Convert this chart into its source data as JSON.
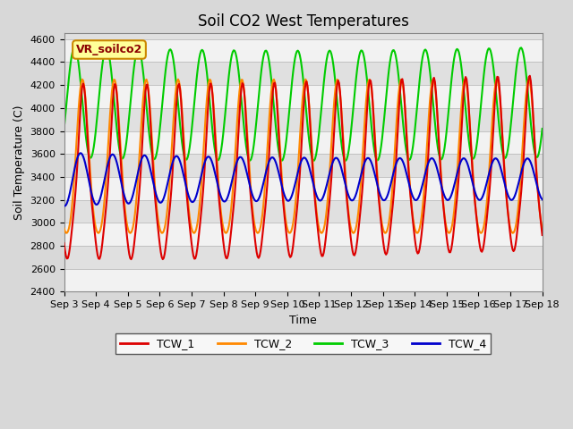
{
  "title": "Soil CO2 West Temperatures",
  "xlabel": "Time",
  "ylabel": "Soil Temperature (C)",
  "ylim": [
    2400,
    4650
  ],
  "xlim": [
    0,
    15
  ],
  "xtick_labels": [
    "Sep 3",
    "Sep 4",
    "Sep 5",
    "Sep 6",
    "Sep 7",
    "Sep 8",
    "Sep 9",
    "Sep 10",
    "Sep 11",
    "Sep 12",
    "Sep 13",
    "Sep 14",
    "Sep 15",
    "Sep 16",
    "Sep 17",
    "Sep 18"
  ],
  "series_labels": [
    "TCW_1",
    "TCW_2",
    "TCW_3",
    "TCW_4"
  ],
  "series_colors": [
    "#dd0000",
    "#ff8800",
    "#00cc00",
    "#0000cc"
  ],
  "annotation_text": "VR_soilco2",
  "yticks": [
    2400,
    2600,
    2800,
    3000,
    3200,
    3400,
    3600,
    3800,
    4000,
    4200,
    4400,
    4600
  ],
  "title_fontsize": 12,
  "label_fontsize": 9,
  "tick_fontsize": 8
}
